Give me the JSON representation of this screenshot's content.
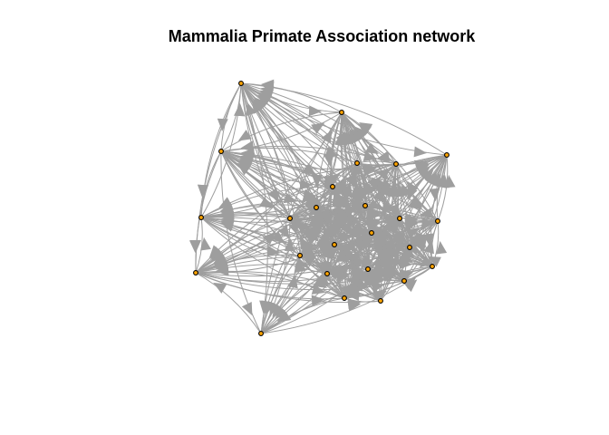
{
  "title": "Mammalia Primate Association network",
  "colors": {
    "background": "#ffffff",
    "edge": "#9e9e9e",
    "node_fill": "#ffa500",
    "node_stroke": "#000000",
    "title": "#000000"
  },
  "graph": {
    "directed": true,
    "edge_style": "curved",
    "node_count": 25
  }
}
